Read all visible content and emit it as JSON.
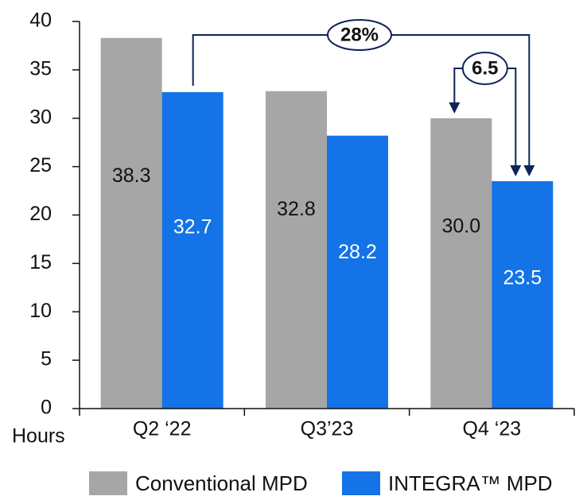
{
  "chart_data": {
    "type": "bar",
    "categories": [
      "Q2 ‘22",
      "Q3’23",
      "Q4 ‘23"
    ],
    "series": [
      {
        "name": "Conventional MPD",
        "values": [
          38.3,
          32.8,
          30.0
        ],
        "labels": [
          "38.3",
          "32.8",
          "30.0"
        ],
        "color": "#a6a6a6",
        "label_color": "#111111"
      },
      {
        "name": "INTEGRA™ MPD",
        "values": [
          32.7,
          28.2,
          23.5
        ],
        "labels": [
          "32.7",
          "28.2",
          "23.5"
        ],
        "color": "#1473e6",
        "label_color": "#ffffff"
      }
    ],
    "ylim": [
      0,
      40
    ],
    "yticks": [
      0,
      5,
      10,
      15,
      20,
      25,
      30,
      35,
      40
    ],
    "ylabel": "Hours",
    "grid": false,
    "legend_position": "bottom",
    "annotations": [
      {
        "text": "28%",
        "from": "Q2 ‘22 INTEGRA™ MPD",
        "to": "Q4 ‘23 INTEGRA™ MPD"
      },
      {
        "text": "6.5",
        "from": "Q4 ‘23 Conventional MPD",
        "to": "Q4 ‘23 INTEGRA™ MPD"
      }
    ],
    "annotation_color": "#0c2456"
  }
}
